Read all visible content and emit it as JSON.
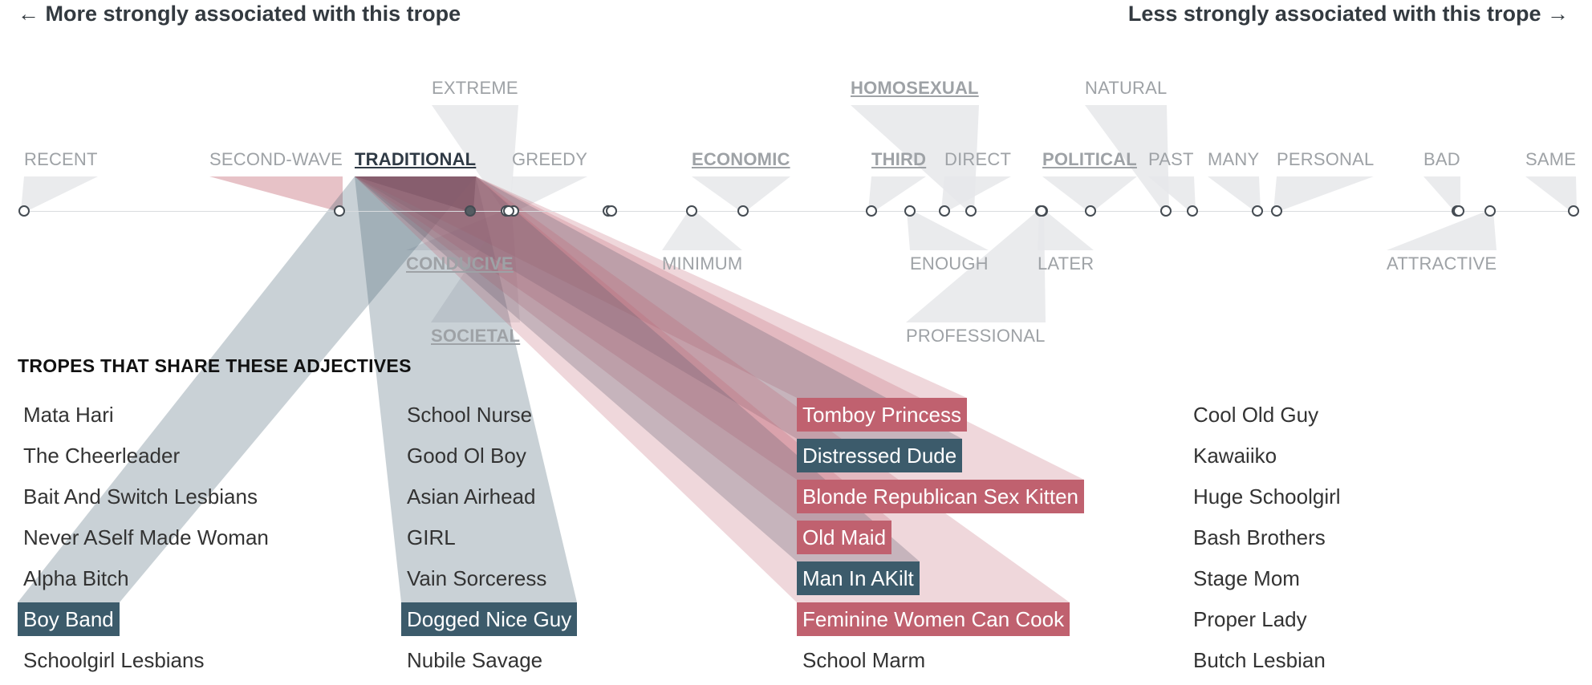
{
  "header": {
    "left": "← More strongly associated with this trope",
    "right": "Less strongly associated with this trope →"
  },
  "adjectives": [
    {
      "id": "recent",
      "label": "RECENT",
      "shared": false,
      "active": false
    },
    {
      "id": "second_wave",
      "label": "SECOND-WAVE",
      "shared": false,
      "active": false
    },
    {
      "id": "traditional",
      "label": "TRADITIONAL",
      "shared": true,
      "active": true
    },
    {
      "id": "greedy",
      "label": "GREEDY",
      "shared": false,
      "active": false
    },
    {
      "id": "extreme",
      "label": "EXTREME",
      "shared": false,
      "active": false
    },
    {
      "id": "conducive",
      "label": "CONDUCIVE",
      "shared": true,
      "active": false
    },
    {
      "id": "societal",
      "label": "SOCIETAL",
      "shared": true,
      "active": false
    },
    {
      "id": "economic",
      "label": "ECONOMIC",
      "shared": true,
      "active": false
    },
    {
      "id": "minimum",
      "label": "MINIMUM",
      "shared": false,
      "active": false
    },
    {
      "id": "homosexual",
      "label": "HOMOSEXUAL",
      "shared": true,
      "active": false
    },
    {
      "id": "third",
      "label": "THIRD",
      "shared": true,
      "active": false
    },
    {
      "id": "direct",
      "label": "DIRECT",
      "shared": false,
      "active": false
    },
    {
      "id": "enough",
      "label": "ENOUGH",
      "shared": false,
      "active": false
    },
    {
      "id": "professional",
      "label": "PROFESSIONAL",
      "shared": false,
      "active": false
    },
    {
      "id": "political",
      "label": "POLITICAL",
      "shared": true,
      "active": false
    },
    {
      "id": "later",
      "label": "LATER",
      "shared": false,
      "active": false
    },
    {
      "id": "natural",
      "label": "NATURAL",
      "shared": false,
      "active": false
    },
    {
      "id": "past",
      "label": "PAST",
      "shared": false,
      "active": false
    },
    {
      "id": "many",
      "label": "MANY",
      "shared": false,
      "active": false
    },
    {
      "id": "personal",
      "label": "PERSONAL",
      "shared": false,
      "active": false
    },
    {
      "id": "bad",
      "label": "BAD",
      "shared": false,
      "active": false
    },
    {
      "id": "attractive",
      "label": "ATTRACTIVE",
      "shared": false,
      "active": false
    },
    {
      "id": "same",
      "label": "SAME",
      "shared": false,
      "active": false
    }
  ],
  "tropes_title": "TROPES THAT SHARE THESE ADJECTIVES",
  "trope_columns": [
    [
      {
        "name": "Mata Hari",
        "highlight": "none"
      },
      {
        "name": "The Cheerleader",
        "highlight": "none"
      },
      {
        "name": "Bait And Switch Lesbians",
        "highlight": "none"
      },
      {
        "name": "Never ASelf Made Woman",
        "highlight": "none"
      },
      {
        "name": "Alpha Bitch",
        "highlight": "none"
      },
      {
        "name": "Boy Band",
        "highlight": "blue"
      },
      {
        "name": "Schoolgirl Lesbians",
        "highlight": "none"
      }
    ],
    [
      {
        "name": "School Nurse",
        "highlight": "none"
      },
      {
        "name": "Good Ol Boy",
        "highlight": "none"
      },
      {
        "name": "Asian Airhead",
        "highlight": "none"
      },
      {
        "name": "GIRL",
        "highlight": "none"
      },
      {
        "name": "Vain Sorceress",
        "highlight": "none"
      },
      {
        "name": "Dogged Nice Guy",
        "highlight": "blue"
      },
      {
        "name": "Nubile Savage",
        "highlight": "none"
      }
    ],
    [
      {
        "name": "Tomboy Princess",
        "highlight": "red"
      },
      {
        "name": "Distressed Dude",
        "highlight": "blue"
      },
      {
        "name": "Blonde Republican Sex Kitten",
        "highlight": "red"
      },
      {
        "name": "Old Maid",
        "highlight": "red"
      },
      {
        "name": "Man In AKilt",
        "highlight": "blue"
      },
      {
        "name": "Feminine Women Can Cook",
        "highlight": "red"
      },
      {
        "name": "School Marm",
        "highlight": "none"
      }
    ],
    [
      {
        "name": "Cool Old Guy",
        "highlight": "none"
      },
      {
        "name": "Kawaiiko",
        "highlight": "none"
      },
      {
        "name": "Huge Schoolgirl",
        "highlight": "none"
      },
      {
        "name": "Bash Brothers",
        "highlight": "none"
      },
      {
        "name": "Stage Mom",
        "highlight": "none"
      },
      {
        "name": "Proper Lady",
        "highlight": "none"
      },
      {
        "name": "Butch Lesbian",
        "highlight": "none"
      }
    ]
  ],
  "colors": {
    "blue": "#3c5b6b",
    "red": "#c0616f",
    "wedge_gray": "#e6e8ea"
  }
}
